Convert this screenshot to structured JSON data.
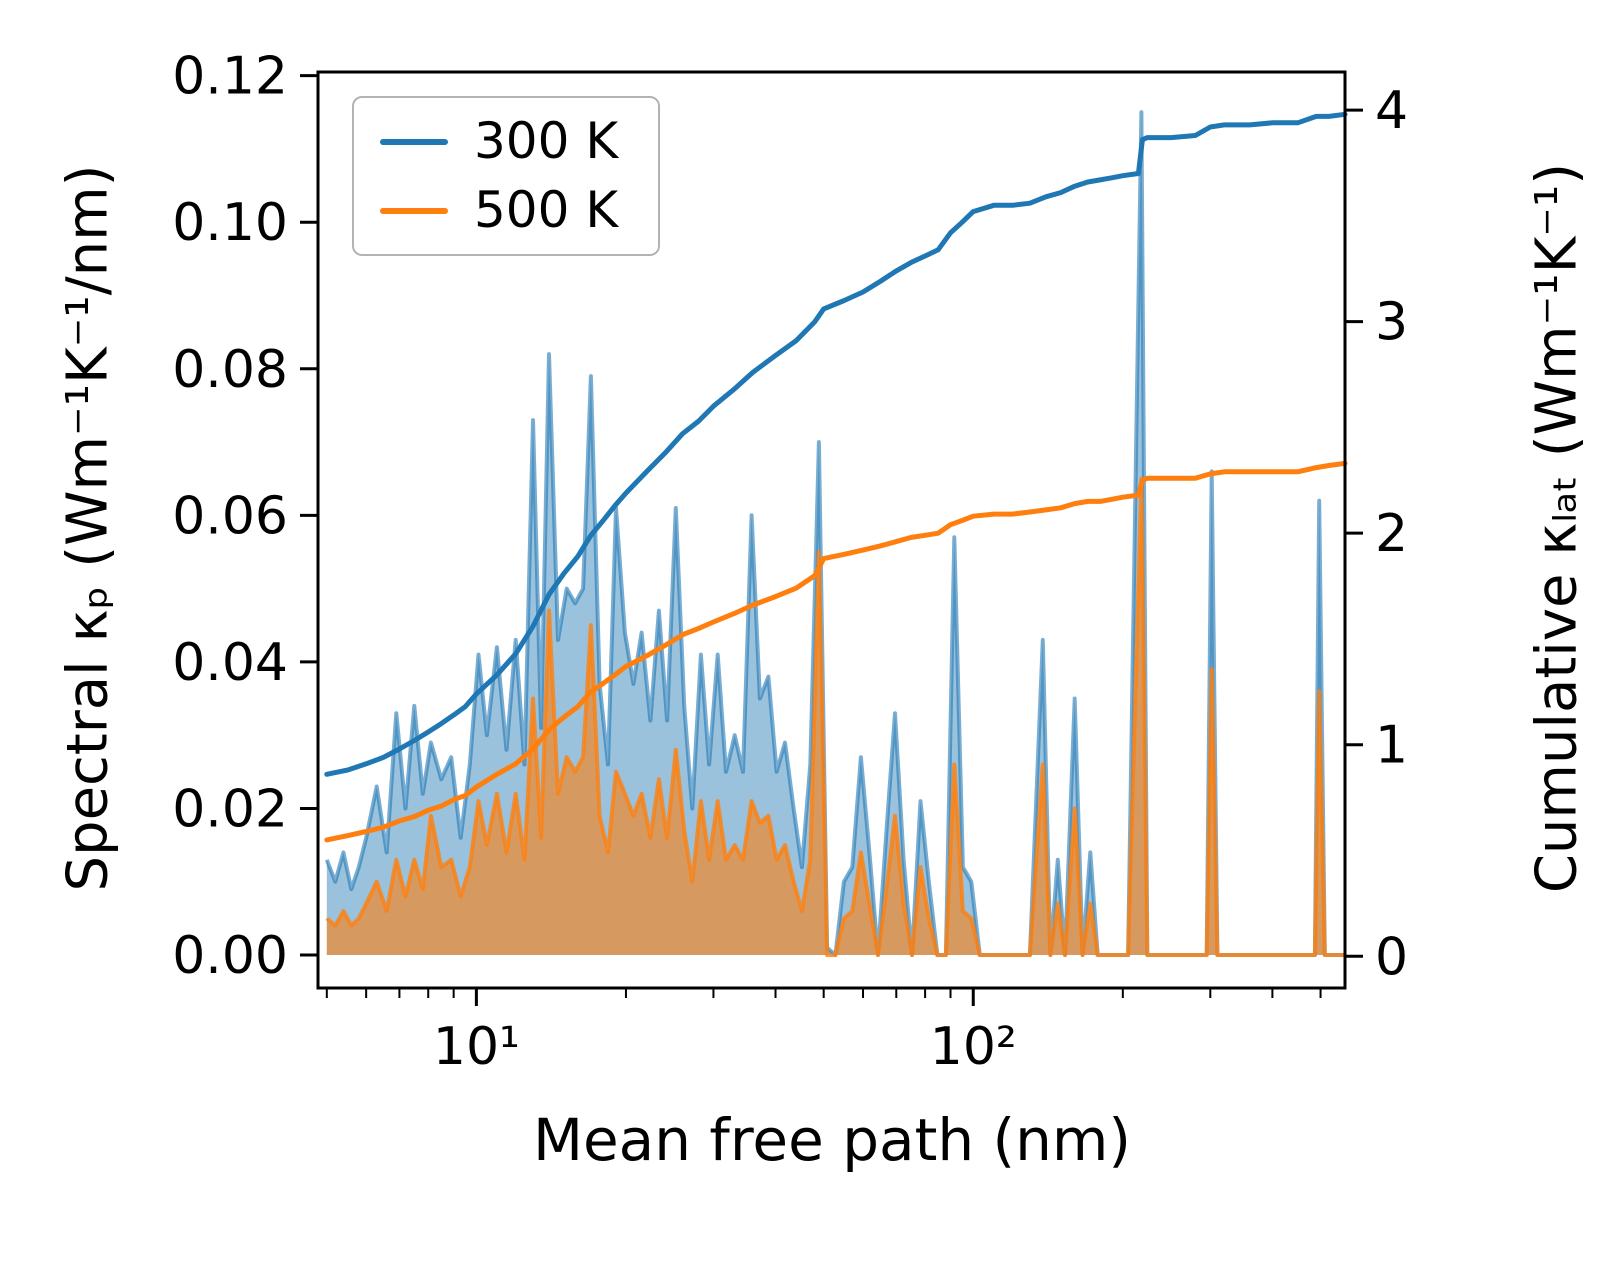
{
  "figure": {
    "xlabel": "Mean free path (nm)",
    "ylabel_left": "Spectral κₚ (Wm⁻¹K⁻¹/nm)",
    "ylabel_right": "Cumulative κₗₐₜ (Wm⁻¹K⁻¹)"
  },
  "legend": {
    "items": [
      {
        "label": "300 K",
        "color": "#1f77b4"
      },
      {
        "label": "500 K",
        "color": "#ff7f0e"
      }
    ],
    "position": "upper left"
  },
  "chart_data": {
    "type": "line",
    "x_scale": "log",
    "grid": false,
    "xlim": [
      4.8,
      560
    ],
    "xticks": {
      "major": [
        {
          "value": 10,
          "label": "10¹"
        },
        {
          "value": 100,
          "label": "10²"
        }
      ],
      "minor": [
        5,
        6,
        7,
        8,
        9,
        20,
        30,
        40,
        50,
        60,
        70,
        80,
        90,
        200,
        300,
        400,
        500
      ]
    },
    "left_axis": {
      "label": "Spectral κₚ (Wm⁻¹K⁻¹/nm)",
      "lim": [
        -0.0045,
        0.1205
      ],
      "ticks": [
        0,
        0.02,
        0.04,
        0.06,
        0.08,
        0.1,
        0.12
      ],
      "tick_labels": [
        "0.00",
        "0.02",
        "0.04",
        "0.06",
        "0.08",
        "0.10",
        "0.12"
      ]
    },
    "right_axis": {
      "label": "Cumulative κₗₐₜ (Wm⁻¹K⁻¹)",
      "lim": [
        -0.15,
        4.18
      ],
      "ticks": [
        0,
        1,
        2,
        3,
        4
      ],
      "tick_labels": [
        "0",
        "1",
        "2",
        "3",
        "4"
      ]
    },
    "series": [
      {
        "id": "spectral-300",
        "name": "Spectral κₚ 300 K",
        "axis": "left",
        "style": "filled_spiky",
        "color": "#1f77b4",
        "fill_opacity": 0.45,
        "line_opacity": 0.6,
        "x": [
          5.0,
          5.2,
          5.4,
          5.6,
          5.8,
          6.0,
          6.3,
          6.6,
          6.9,
          7.2,
          7.5,
          7.8,
          8.1,
          8.5,
          8.9,
          9.3,
          9.7,
          10.1,
          10.5,
          11.0,
          11.5,
          12.0,
          12.5,
          13.0,
          13.5,
          14.0,
          14.6,
          15.2,
          15.8,
          16.4,
          17.0,
          17.7,
          18.4,
          19.1,
          19.9,
          20.7,
          21.5,
          22.4,
          23.3,
          24.2,
          25.2,
          26.2,
          27.2,
          28.3,
          29.4,
          30.6,
          31.8,
          33.1,
          34.4,
          35.8,
          37.2,
          38.7,
          40.2,
          41.8,
          43.5,
          45.2,
          47.0,
          48.9,
          50.8,
          52.8,
          54.9,
          57.1,
          59.4,
          61.8,
          64.3,
          66.9,
          69.6,
          72.4,
          75.3,
          78.3,
          81.4,
          84.7,
          88.1,
          91.6,
          95.3,
          99.1,
          103.1,
          107.2,
          111.5,
          120,
          130,
          138,
          143,
          148,
          153,
          160,
          166,
          172,
          178,
          190,
          205,
          218,
          224,
          240,
          270,
          295,
          302,
          310,
          360,
          430,
          487,
          497,
          510,
          560
        ],
        "y": [
          0.013,
          0.01,
          0.014,
          0.009,
          0.012,
          0.016,
          0.023,
          0.014,
          0.033,
          0.02,
          0.034,
          0.022,
          0.029,
          0.024,
          0.027,
          0.016,
          0.026,
          0.041,
          0.03,
          0.042,
          0.028,
          0.043,
          0.026,
          0.073,
          0.031,
          0.082,
          0.043,
          0.05,
          0.048,
          0.05,
          0.079,
          0.037,
          0.026,
          0.061,
          0.044,
          0.037,
          0.044,
          0.032,
          0.047,
          0.032,
          0.061,
          0.034,
          0.02,
          0.041,
          0.026,
          0.041,
          0.025,
          0.03,
          0.025,
          0.06,
          0.035,
          0.038,
          0.025,
          0.029,
          0.02,
          0.012,
          0.026,
          0.07,
          0.001,
          0.0,
          0.01,
          0.012,
          0.027,
          0.014,
          0.0,
          0.017,
          0.033,
          0.013,
          0.0,
          0.021,
          0.01,
          0.0,
          0.0,
          0.057,
          0.012,
          0.01,
          0.0,
          0.0,
          0.0,
          0.0,
          0.0,
          0.043,
          0.0,
          0.013,
          0.0,
          0.035,
          0.0,
          0.014,
          0.0,
          0.0,
          0.0,
          0.115,
          0.0,
          0.0,
          0.0,
          0.0,
          0.066,
          0.0,
          0.0,
          0.0,
          0.0,
          0.062,
          0.0,
          0.0
        ]
      },
      {
        "id": "spectral-500",
        "name": "Spectral κₚ 500 K",
        "axis": "left",
        "style": "filled_spiky",
        "color": "#ff7f0e",
        "fill_opacity": 0.6,
        "line_opacity": 0.8,
        "x": [
          5.0,
          5.2,
          5.4,
          5.6,
          5.8,
          6.0,
          6.3,
          6.6,
          6.9,
          7.2,
          7.5,
          7.8,
          8.1,
          8.5,
          8.9,
          9.3,
          9.7,
          10.1,
          10.5,
          11.0,
          11.5,
          12.0,
          12.5,
          13.0,
          13.5,
          14.0,
          14.6,
          15.2,
          15.8,
          16.4,
          17.0,
          17.7,
          18.4,
          19.1,
          19.9,
          20.7,
          21.5,
          22.4,
          23.3,
          24.2,
          25.2,
          26.2,
          27.2,
          28.3,
          29.4,
          30.6,
          31.8,
          33.1,
          34.4,
          35.8,
          37.2,
          38.7,
          40.2,
          41.8,
          43.5,
          45.2,
          47.0,
          48.9,
          50.8,
          52.8,
          54.9,
          57.1,
          59.4,
          61.8,
          64.3,
          66.9,
          69.6,
          72.4,
          75.3,
          78.3,
          81.4,
          84.7,
          88.1,
          91.6,
          95.3,
          99.1,
          103.1,
          107.2,
          111.5,
          120,
          130,
          138,
          143,
          148,
          153,
          160,
          166,
          172,
          178,
          190,
          205,
          218,
          224,
          240,
          270,
          295,
          302,
          310,
          360,
          430,
          487,
          497,
          510,
          560
        ],
        "y": [
          0.005,
          0.004,
          0.006,
          0.004,
          0.005,
          0.007,
          0.01,
          0.006,
          0.013,
          0.008,
          0.013,
          0.009,
          0.019,
          0.012,
          0.013,
          0.008,
          0.012,
          0.021,
          0.015,
          0.022,
          0.014,
          0.022,
          0.013,
          0.035,
          0.016,
          0.047,
          0.022,
          0.027,
          0.025,
          0.027,
          0.045,
          0.019,
          0.014,
          0.025,
          0.022,
          0.019,
          0.022,
          0.016,
          0.024,
          0.016,
          0.028,
          0.017,
          0.01,
          0.021,
          0.013,
          0.021,
          0.013,
          0.015,
          0.013,
          0.021,
          0.018,
          0.019,
          0.013,
          0.015,
          0.01,
          0.006,
          0.013,
          0.055,
          0.0,
          0.0,
          0.005,
          0.006,
          0.014,
          0.007,
          0.0,
          0.009,
          0.019,
          0.007,
          0.0,
          0.012,
          0.005,
          0.0,
          0.0,
          0.026,
          0.006,
          0.005,
          0.0,
          0.0,
          0.0,
          0.0,
          0.0,
          0.026,
          0.0,
          0.007,
          0.0,
          0.02,
          0.0,
          0.007,
          0.0,
          0.0,
          0.0,
          0.065,
          0.0,
          0.0,
          0.0,
          0.0,
          0.039,
          0.0,
          0.0,
          0.0,
          0.0,
          0.036,
          0.0,
          0.0
        ]
      },
      {
        "id": "cumulative-300",
        "name": "Cumulative κₗₐₜ 300 K",
        "axis": "right",
        "style": "line",
        "color": "#1f77b4",
        "x": [
          5,
          5.5,
          6,
          6.5,
          7,
          7.5,
          8,
          8.5,
          9,
          9.5,
          10,
          11,
          12,
          13,
          14,
          15,
          16,
          17,
          18,
          19,
          20,
          22,
          24,
          26,
          28,
          30,
          33,
          36,
          40,
          44,
          48,
          50,
          55,
          60,
          65,
          70,
          75,
          80,
          85,
          90,
          95,
          100,
          110,
          120,
          130,
          140,
          150,
          160,
          170,
          180,
          190,
          200,
          215,
          219,
          224,
          250,
          280,
          300,
          320,
          360,
          400,
          450,
          490,
          520,
          560
        ],
        "y": [
          0.86,
          0.88,
          0.91,
          0.94,
          0.98,
          1.02,
          1.06,
          1.1,
          1.14,
          1.18,
          1.24,
          1.33,
          1.43,
          1.56,
          1.71,
          1.81,
          1.89,
          1.99,
          2.06,
          2.13,
          2.19,
          2.29,
          2.38,
          2.47,
          2.53,
          2.6,
          2.68,
          2.76,
          2.84,
          2.91,
          3.0,
          3.06,
          3.1,
          3.14,
          3.19,
          3.24,
          3.28,
          3.31,
          3.34,
          3.42,
          3.47,
          3.52,
          3.55,
          3.55,
          3.56,
          3.59,
          3.61,
          3.64,
          3.66,
          3.67,
          3.68,
          3.69,
          3.7,
          3.86,
          3.87,
          3.87,
          3.88,
          3.92,
          3.93,
          3.93,
          3.94,
          3.94,
          3.97,
          3.97,
          3.98
        ]
      },
      {
        "id": "cumulative-500",
        "name": "Cumulative κₗₐₜ 500 K",
        "axis": "right",
        "style": "line",
        "color": "#ff7f0e",
        "x": [
          5,
          5.5,
          6,
          6.5,
          7,
          7.5,
          8,
          8.5,
          9,
          9.5,
          10,
          11,
          12,
          13,
          14,
          15,
          16,
          17,
          18,
          19,
          20,
          22,
          24,
          26,
          28,
          30,
          33,
          36,
          40,
          44,
          48,
          50,
          55,
          60,
          65,
          70,
          75,
          80,
          85,
          90,
          95,
          100,
          110,
          120,
          130,
          140,
          150,
          160,
          170,
          180,
          190,
          200,
          215,
          219,
          224,
          250,
          280,
          300,
          320,
          360,
          400,
          450,
          490,
          520,
          560
        ],
        "y": [
          0.55,
          0.57,
          0.59,
          0.61,
          0.64,
          0.66,
          0.69,
          0.71,
          0.74,
          0.76,
          0.8,
          0.86,
          0.91,
          0.98,
          1.07,
          1.13,
          1.18,
          1.25,
          1.29,
          1.33,
          1.37,
          1.42,
          1.47,
          1.52,
          1.55,
          1.58,
          1.62,
          1.66,
          1.7,
          1.74,
          1.8,
          1.88,
          1.9,
          1.92,
          1.94,
          1.96,
          1.98,
          1.99,
          2.0,
          2.04,
          2.06,
          2.08,
          2.09,
          2.09,
          2.1,
          2.11,
          2.12,
          2.14,
          2.15,
          2.15,
          2.16,
          2.17,
          2.18,
          2.25,
          2.26,
          2.26,
          2.26,
          2.28,
          2.29,
          2.29,
          2.29,
          2.29,
          2.31,
          2.32,
          2.33
        ]
      }
    ]
  }
}
